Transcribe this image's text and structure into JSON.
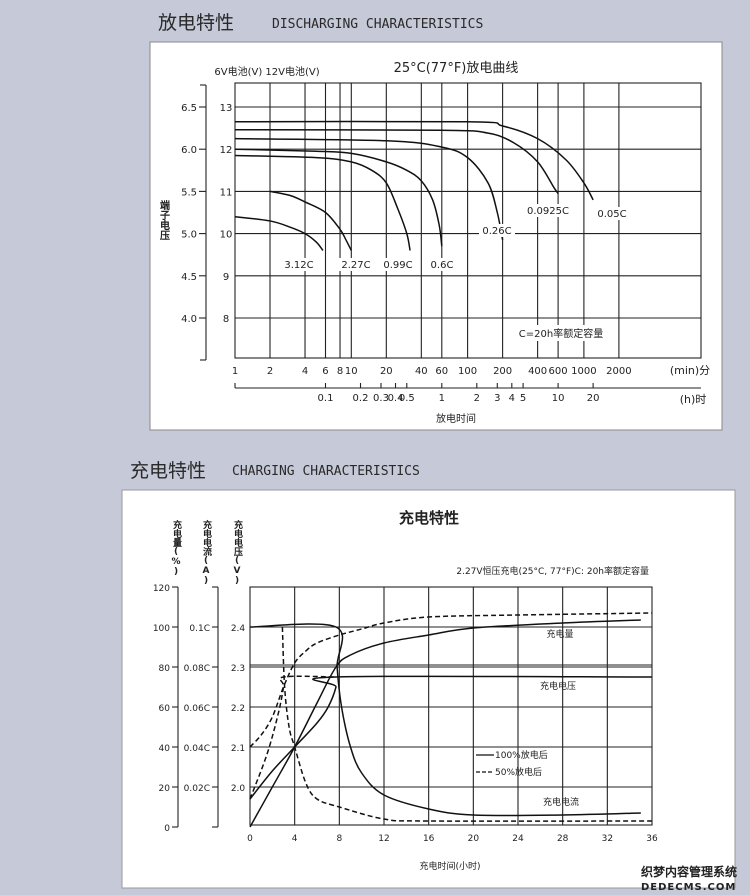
{
  "discharge_section": {
    "title_cn": "放电特性",
    "title_en": "DISCHARGING CHARACTERISTICS"
  },
  "charge_section": {
    "title_cn": "充电特性",
    "title_en": "CHARGING CHARACTERISTICS"
  },
  "watermark": {
    "line1": "织梦内容管理系统",
    "line2": "DEDECMS.COM"
  },
  "chart_data": [
    {
      "type": "line",
      "title": "25°C(77°F)放电曲线",
      "axis_header": "6V电池(V)  12V电池(V)",
      "ylabel": "端子电压",
      "xlabel": "放电时间",
      "x_scale": "log",
      "xlim": [
        1,
        10000
      ],
      "ylim": [
        7.05,
        13.6
      ],
      "grid": true,
      "note": "C=20h率额定容量",
      "x_unit_min": "(min)分",
      "x_unit_h": "(h)时",
      "x_ticks_min": [
        1,
        2,
        4,
        6,
        8,
        10,
        20,
        40,
        60,
        100,
        200,
        400,
        600,
        1000,
        2000
      ],
      "x_ticks_h": [
        0.1,
        0.2,
        0.3,
        0.4,
        0.5,
        1,
        2,
        3,
        4,
        5,
        10,
        20
      ],
      "y_ticks_12v": [
        8,
        9,
        10,
        11,
        12,
        13
      ],
      "y_ticks_6v": [
        "4.0",
        "4.5",
        "5.0",
        "5.5",
        "6.0",
        "6.5"
      ],
      "series": [
        {
          "name": "3.12C",
          "points": [
            [
              1,
              10.4
            ],
            [
              2,
              10.3
            ],
            [
              3,
              10.15
            ],
            [
              4,
              10.0
            ],
            [
              5,
              9.8
            ],
            [
              5.7,
              9.6
            ]
          ]
        },
        {
          "name": "2.27C",
          "points": [
            [
              2,
              11.0
            ],
            [
              3,
              10.9
            ],
            [
              4,
              10.75
            ],
            [
              6,
              10.5
            ],
            [
              8,
              10.1
            ],
            [
              9,
              9.85
            ],
            [
              10,
              9.6
            ]
          ]
        },
        {
          "name": "0.99C",
          "points": [
            [
              1,
              11.85
            ],
            [
              5,
              11.8
            ],
            [
              10,
              11.7
            ],
            [
              15,
              11.5
            ],
            [
              20,
              11.2
            ],
            [
              25,
              10.6
            ],
            [
              30,
              10.0
            ],
            [
              32,
              9.6
            ]
          ]
        },
        {
          "name": "0.6C",
          "points": [
            [
              1,
              12.0
            ],
            [
              5,
              11.95
            ],
            [
              10,
              11.9
            ],
            [
              20,
              11.7
            ],
            [
              30,
              11.5
            ],
            [
              40,
              11.25
            ],
            [
              50,
              10.8
            ],
            [
              57,
              10.2
            ],
            [
              60,
              9.7
            ]
          ]
        },
        {
          "name": "0.26C",
          "points": [
            [
              1,
              12.25
            ],
            [
              20,
              12.2
            ],
            [
              60,
              12.05
            ],
            [
              100,
              11.8
            ],
            [
              150,
              11.2
            ],
            [
              180,
              10.5
            ],
            [
              200,
              9.85
            ]
          ]
        },
        {
          "name": "0.0925C",
          "points": [
            [
              1,
              12.46
            ],
            [
              60,
              12.45
            ],
            [
              150,
              12.38
            ],
            [
              250,
              12.15
            ],
            [
              400,
              11.7
            ],
            [
              550,
              11.1
            ],
            [
              600,
              10.95
            ]
          ]
        },
        {
          "name": "0.05C",
          "points": [
            [
              1,
              12.65
            ],
            [
              100,
              12.65
            ],
            [
              200,
              12.55
            ],
            [
              400,
              12.25
            ],
            [
              700,
              11.75
            ],
            [
              1000,
              11.2
            ],
            [
              1200,
              10.8
            ]
          ]
        }
      ]
    },
    {
      "type": "line",
      "title": "充电特性",
      "subtitle": "2.27V恒压充电(25°C, 77°F)C: 20h率额定容量",
      "xlabel": "充电时间(小时)",
      "xlim": [
        0,
        36
      ],
      "grid": true,
      "axes": {
        "charge": {
          "label": "充电量(%)",
          "ticks": [
            "0",
            "20",
            "40",
            "60",
            "80",
            "100",
            "120"
          ],
          "range": [
            0,
            120
          ]
        },
        "current": {
          "label": "充电电流(A)",
          "ticks": [
            "0.02C",
            "0.04C",
            "0.06C",
            "0.08C",
            "0.1C"
          ]
        },
        "voltage": {
          "label": "充电电压(V)",
          "ticks": [
            "2.0",
            "2.1",
            "2.2",
            "2.3",
            "2.4"
          ]
        }
      },
      "x_ticks": [
        0,
        4,
        8,
        12,
        16,
        20,
        24,
        28,
        32,
        36
      ],
      "curve_labels": {
        "charge": "充电量",
        "voltage": "充电电压",
        "current": "充电电流"
      },
      "legend": [
        {
          "name": "100%放电后",
          "style": "solid"
        },
        {
          "name": "50%放电后",
          "style": "dashed"
        }
      ],
      "series": [
        {
          "quantity": "charge",
          "unit": "%",
          "style": "solid",
          "points": [
            [
              0,
              0
            ],
            [
              2,
              20
            ],
            [
              4,
              40
            ],
            [
              6,
              62
            ],
            [
              7.7,
              80
            ],
            [
              9,
              86
            ],
            [
              12,
              92
            ],
            [
              16,
              96
            ],
            [
              20,
              99.5
            ],
            [
              28,
              102
            ],
            [
              35,
              103.5
            ]
          ]
        },
        {
          "quantity": "charge",
          "unit": "%",
          "style": "dashed",
          "points": [
            [
              0,
              40
            ],
            [
              1,
              46
            ],
            [
              2,
              55
            ],
            [
              3,
              70
            ],
            [
              4,
              82
            ],
            [
              5,
              88
            ],
            [
              6,
              92
            ],
            [
              8,
              96
            ],
            [
              10,
              99
            ],
            [
              12,
              102
            ],
            [
              16,
              105
            ],
            [
              24,
              106
            ],
            [
              36,
              107
            ]
          ]
        },
        {
          "quantity": "voltage",
          "unit": "V",
          "style": "solid",
          "points": [
            [
              0,
              1.97
            ],
            [
              2,
              2.04
            ],
            [
              4,
              2.1
            ],
            [
              6,
              2.16
            ],
            [
              7,
              2.2
            ],
            [
              7.7,
              2.25
            ],
            [
              7.7,
              2.275
            ],
            [
              36,
              2.275
            ]
          ]
        },
        {
          "quantity": "voltage",
          "unit": "V",
          "style": "dashed",
          "points": [
            [
              0,
              1.97
            ],
            [
              1.5,
              2.08
            ],
            [
              2.5,
              2.18
            ],
            [
              3,
              2.25
            ],
            [
              3,
              2.275
            ],
            [
              7.7,
              2.275
            ]
          ]
        },
        {
          "quantity": "current",
          "unit": "C",
          "style": "solid",
          "points": [
            [
              0,
              0.1
            ],
            [
              7.7,
              0.1
            ],
            [
              7.8,
              0.08
            ],
            [
              8.2,
              0.06
            ],
            [
              9,
              0.04
            ],
            [
              10,
              0.027
            ],
            [
              12,
              0.016
            ],
            [
              16,
              0.009
            ],
            [
              20,
              0.006
            ],
            [
              28,
              0.006
            ],
            [
              35,
              0.007
            ]
          ]
        },
        {
          "quantity": "current",
          "unit": "C",
          "style": "dashed",
          "points": [
            [
              2.9,
              0.1
            ],
            [
              3.1,
              0.07
            ],
            [
              3.5,
              0.05
            ],
            [
              4,
              0.04
            ],
            [
              5,
              0.022
            ],
            [
              6,
              0.014
            ],
            [
              8,
              0.01
            ],
            [
              12,
              0.004
            ],
            [
              16,
              0.003
            ],
            [
              36,
              0.003
            ]
          ]
        }
      ]
    }
  ]
}
